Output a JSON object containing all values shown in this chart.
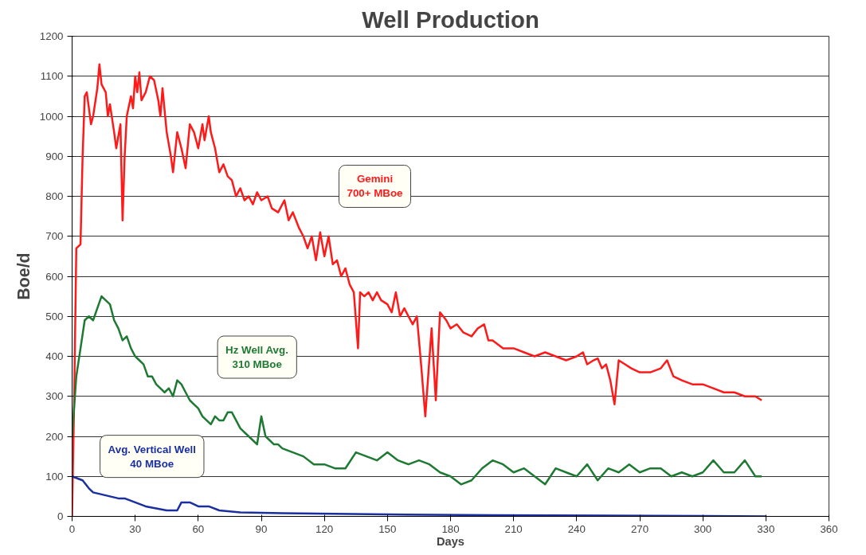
{
  "chart_data": {
    "type": "line",
    "title": "Well Production",
    "xlabel": "Days",
    "ylabel": "Boe/d",
    "xlim": [
      0,
      360
    ],
    "xticks": [
      0,
      30,
      60,
      90,
      120,
      150,
      180,
      210,
      240,
      270,
      300,
      330,
      360
    ],
    "ylim": [
      0,
      1200
    ],
    "yticks": [
      0,
      100,
      200,
      300,
      400,
      500,
      600,
      700,
      800,
      900,
      1000,
      1100,
      1200
    ],
    "grid": "y",
    "marker": "none",
    "line_style": "solid",
    "series": [
      {
        "name": "Gemini\n700+ MBoe",
        "color": "#ff1a1a",
        "x": [
          0,
          1,
          2,
          4,
          5,
          6,
          7,
          9,
          10,
          12,
          13,
          14,
          16,
          17,
          18,
          20,
          21,
          23,
          24,
          25,
          26,
          28,
          29,
          30,
          31,
          32,
          33,
          35,
          37,
          39,
          41,
          42,
          43,
          45,
          47,
          48,
          50,
          52,
          54,
          56,
          58,
          60,
          62,
          63,
          65,
          66,
          68,
          70,
          72,
          74,
          76,
          78,
          80,
          82,
          84,
          86,
          88,
          90,
          93,
          95,
          98,
          101,
          103,
          105,
          108,
          110,
          112,
          114,
          116,
          118,
          120,
          122,
          124,
          126,
          128,
          130,
          132,
          134,
          136,
          137,
          139,
          141,
          143,
          145,
          147,
          150,
          152,
          154,
          156,
          158,
          160,
          162,
          164,
          166,
          168,
          171,
          173,
          175,
          178,
          180,
          183,
          186,
          190,
          193,
          196,
          198,
          200,
          205,
          210,
          215,
          220,
          225,
          230,
          235,
          240,
          243,
          245,
          248,
          250,
          252,
          254,
          256,
          258,
          260,
          263,
          266,
          270,
          275,
          280,
          283,
          286,
          290,
          295,
          300,
          305,
          310,
          315,
          320,
          325,
          328
        ],
        "values": [
          0,
          300,
          670,
          680,
          900,
          1050,
          1060,
          980,
          1000,
          1070,
          1130,
          1080,
          1060,
          1000,
          1030,
          960,
          920,
          980,
          740,
          900,
          1000,
          1050,
          1020,
          1100,
          1060,
          1110,
          1040,
          1060,
          1100,
          1090,
          1040,
          1000,
          1070,
          960,
          900,
          860,
          960,
          920,
          870,
          980,
          960,
          920,
          980,
          940,
          1000,
          960,
          920,
          860,
          880,
          850,
          840,
          800,
          820,
          790,
          800,
          780,
          810,
          790,
          800,
          770,
          760,
          790,
          740,
          760,
          720,
          700,
          670,
          700,
          640,
          710,
          650,
          700,
          630,
          640,
          600,
          620,
          580,
          560,
          420,
          560,
          550,
          560,
          540,
          560,
          540,
          530,
          510,
          560,
          500,
          520,
          500,
          480,
          500,
          380,
          250,
          470,
          290,
          510,
          490,
          470,
          480,
          460,
          450,
          470,
          480,
          440,
          440,
          420,
          420,
          410,
          400,
          410,
          400,
          390,
          400,
          410,
          380,
          390,
          395,
          370,
          380,
          340,
          280,
          390,
          380,
          370,
          360,
          360,
          370,
          390,
          350,
          340,
          330,
          330,
          320,
          310,
          310,
          300,
          300,
          290
        ]
      },
      {
        "name": "Hz Well Avg.\n310 MBoe",
        "color": "#1e7a33",
        "x": [
          0,
          2,
          4,
          6,
          8,
          10,
          12,
          14,
          16,
          18,
          20,
          22,
          24,
          26,
          28,
          30,
          32,
          34,
          36,
          38,
          40,
          42,
          44,
          46,
          48,
          50,
          52,
          54,
          56,
          58,
          60,
          62,
          64,
          66,
          68,
          70,
          72,
          74,
          76,
          78,
          80,
          82,
          84,
          86,
          88,
          90,
          92,
          94,
          96,
          98,
          100,
          105,
          110,
          115,
          120,
          125,
          130,
          135,
          140,
          145,
          150,
          155,
          160,
          165,
          170,
          175,
          180,
          185,
          190,
          195,
          200,
          205,
          210,
          215,
          220,
          225,
          230,
          235,
          240,
          245,
          250,
          255,
          260,
          265,
          270,
          275,
          280,
          285,
          290,
          295,
          300,
          305,
          310,
          315,
          320,
          325,
          328
        ],
        "values": [
          200,
          350,
          420,
          490,
          500,
          490,
          520,
          550,
          540,
          530,
          490,
          470,
          440,
          450,
          420,
          400,
          390,
          380,
          350,
          350,
          330,
          320,
          310,
          320,
          300,
          340,
          330,
          310,
          290,
          280,
          270,
          250,
          240,
          230,
          250,
          240,
          240,
          260,
          260,
          240,
          220,
          210,
          200,
          190,
          180,
          250,
          200,
          190,
          180,
          180,
          170,
          160,
          150,
          130,
          130,
          120,
          120,
          160,
          150,
          140,
          160,
          140,
          130,
          140,
          130,
          110,
          100,
          80,
          90,
          120,
          140,
          130,
          110,
          120,
          100,
          80,
          120,
          110,
          100,
          130,
          90,
          120,
          110,
          130,
          110,
          120,
          120,
          100,
          110,
          100,
          110,
          140,
          110,
          110,
          140,
          100,
          100
        ]
      },
      {
        "name": "Avg. Vertical Well\n40 MBoe",
        "color": "#1a2fa0",
        "x": [
          0,
          5,
          8,
          10,
          14,
          18,
          22,
          25,
          30,
          35,
          40,
          45,
          50,
          52,
          56,
          60,
          65,
          70,
          80,
          100,
          150,
          200,
          300,
          330
        ],
        "values": [
          100,
          90,
          70,
          60,
          55,
          50,
          45,
          45,
          35,
          25,
          20,
          15,
          15,
          35,
          35,
          25,
          25,
          15,
          10,
          8,
          5,
          3,
          1,
          0
        ]
      }
    ]
  }
}
